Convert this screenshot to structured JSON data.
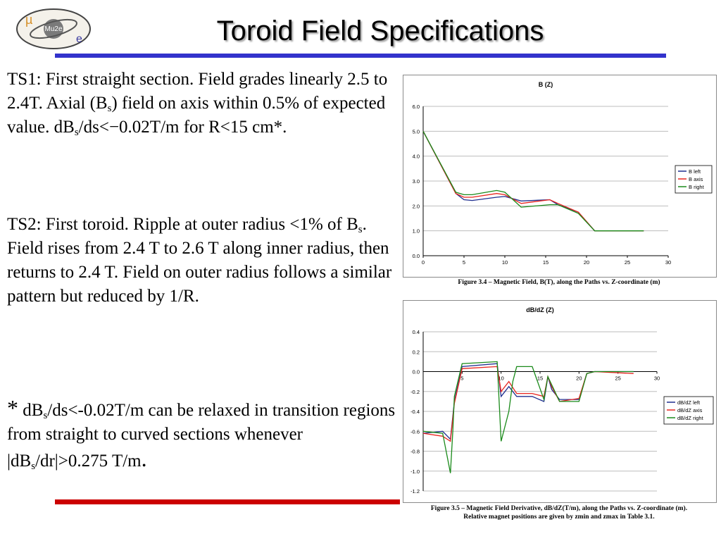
{
  "slide": {
    "title": "Toroid Field Specifications",
    "logo_text": "Mu2e",
    "logo_mu": "µ",
    "logo_e": "e"
  },
  "ts1": {
    "p1": "TS1: First straight section. Field grades linearly 2.5 to 2.4T. Axial (B",
    "sub1": "s",
    "p2": ") field on axis within 0.5% of expected value. dB",
    "sub2": "s",
    "p3": "/ds<−0.02T/m for R<15 cm*."
  },
  "ts2": {
    "p1": "TS2: First toroid. Ripple at outer radius <1%  of B",
    "sub1": "s",
    "p2": ". Field rises from 2.4 T to 2.6 T along inner radius, then returns to 2.4 T. Field on outer radius follows a similar pattern but reduced by 1/R."
  },
  "note": {
    "star": "*",
    "p1": " dB",
    "sub1": "s",
    "p2": "/ds<-0.02T/m can be relaxed in transition regions from straight to curved sections whenever |dB",
    "sub2": "s",
    "p3": "/dr|>0.275 T/m",
    "p4": "."
  },
  "captions": {
    "fig34": "Figure 3.4 – Magnetic Field, B(T), along the Paths vs. Z-coordinate (m)",
    "fig35_line1": "Figure 3.5 – Magnetic Field Derivative, dB/dZ(T/m), along the Paths vs. Z-coordinate (m).",
    "fig35_line2": "Relative magnet positions are given by zmin and zmax in Table 3.1."
  },
  "colors": {
    "accent_blue": "#3333cc",
    "accent_red": "#cc0000",
    "series_left": "#1f2f8f",
    "series_axis": "#e8251f",
    "series_right": "#1a8a1a"
  },
  "chart_data": [
    {
      "type": "line",
      "title": "B (Z)",
      "xlim": [
        0,
        30
      ],
      "ylim": [
        0.0,
        6.0
      ],
      "xticks": [
        "0",
        "5",
        "10",
        "15",
        "20",
        "25",
        "30"
      ],
      "yticks": [
        "0.0",
        "1.0",
        "2.0",
        "3.0",
        "4.0",
        "5.0",
        "6.0"
      ],
      "grid": "horizontal",
      "legend_position": "right",
      "series": [
        {
          "name": "B left",
          "color": "#1f2f8f",
          "x": [
            0,
            4,
            5,
            6,
            9,
            10,
            12,
            15.5,
            16.5,
            19,
            21,
            27
          ],
          "y": [
            5.0,
            2.5,
            2.25,
            2.22,
            2.35,
            2.38,
            2.2,
            2.25,
            2.05,
            1.75,
            1.0,
            1.0
          ]
        },
        {
          "name": "B axis",
          "color": "#e8251f",
          "x": [
            0,
            4,
            5,
            6,
            9,
            10,
            12,
            15.5,
            16.5,
            19,
            21,
            27
          ],
          "y": [
            5.0,
            2.5,
            2.35,
            2.35,
            2.5,
            2.45,
            2.1,
            2.25,
            2.1,
            1.75,
            1.0,
            1.0
          ]
        },
        {
          "name": "B right",
          "color": "#1a8a1a",
          "x": [
            0,
            4,
            5,
            6,
            9,
            10,
            12,
            15.5,
            16.5,
            19,
            21,
            27
          ],
          "y": [
            5.0,
            2.55,
            2.45,
            2.45,
            2.62,
            2.55,
            1.95,
            2.05,
            2.05,
            1.7,
            1.0,
            1.0
          ]
        }
      ]
    },
    {
      "type": "line",
      "title": "dB/dZ (Z)",
      "xlim": [
        0,
        30
      ],
      "ylim": [
        -1.2,
        0.4
      ],
      "xticks": [
        "5",
        "10",
        "15",
        "20",
        "25",
        "30"
      ],
      "yticks": [
        "0.4",
        "0.2",
        "0.0",
        "-0.2",
        "-0.4",
        "-0.6",
        "-0.8",
        "-1.0",
        "-1.2"
      ],
      "grid": "horizontal",
      "legend_position": "right",
      "series": [
        {
          "name": "dB/dZ left",
          "color": "#1f2f8f",
          "x": [
            0,
            2.5,
            3.5,
            4,
            5,
            9.5,
            10,
            11,
            12,
            14,
            15.5,
            16,
            16.5,
            17.5,
            20,
            21,
            22,
            27
          ],
          "y": [
            -0.62,
            -0.6,
            -0.68,
            -0.3,
            0.05,
            0.08,
            -0.25,
            -0.15,
            -0.25,
            -0.25,
            -0.3,
            -0.05,
            -0.18,
            -0.28,
            -0.28,
            -0.02,
            0.0,
            0.0
          ]
        },
        {
          "name": "dB/dZ axis",
          "color": "#e8251f",
          "x": [
            0,
            2.5,
            3.5,
            4,
            5,
            9.5,
            10,
            11,
            12,
            14,
            15.5,
            16,
            16.5,
            17.5,
            20,
            21,
            22,
            27
          ],
          "y": [
            -0.62,
            -0.65,
            -0.7,
            -0.32,
            0.03,
            0.05,
            -0.2,
            -0.1,
            -0.22,
            -0.22,
            -0.25,
            -0.05,
            -0.15,
            -0.3,
            -0.27,
            -0.02,
            0.0,
            -0.02
          ]
        },
        {
          "name": "dB/dZ right",
          "color": "#1a8a1a",
          "x": [
            0,
            2.5,
            3.5,
            3.8,
            4,
            5,
            9.5,
            10,
            11,
            11.5,
            12,
            14,
            15.5,
            16,
            17.5,
            20,
            21,
            22,
            27
          ],
          "y": [
            -0.6,
            -0.62,
            -1.02,
            -0.6,
            -0.25,
            0.08,
            0.1,
            -0.7,
            -0.4,
            -0.1,
            0.05,
            0.05,
            -0.28,
            -0.05,
            -0.3,
            -0.3,
            -0.02,
            0.0,
            0.0
          ]
        }
      ]
    }
  ]
}
